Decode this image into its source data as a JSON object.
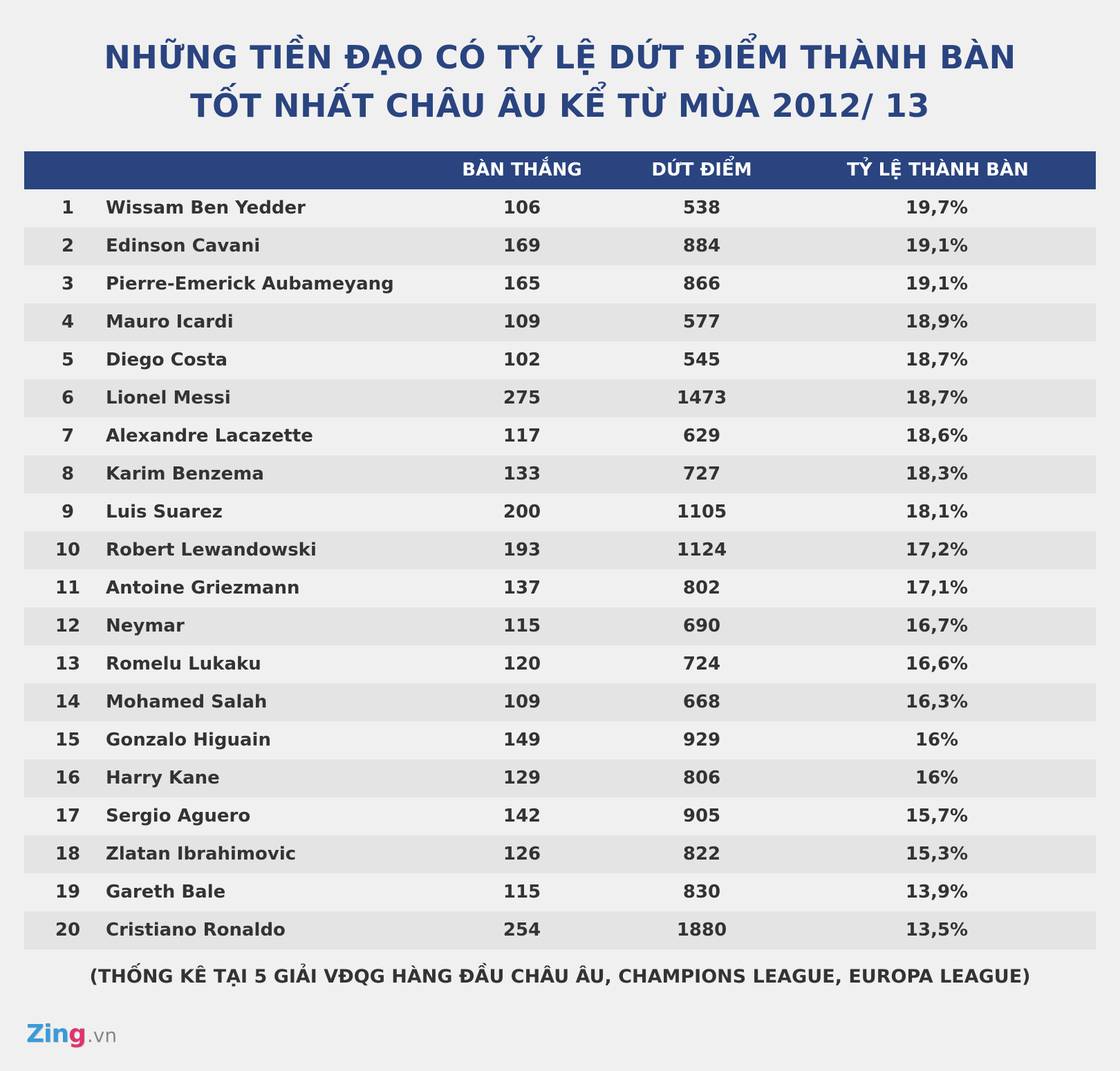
{
  "header": {
    "title_line1": "NHỮNG TIỀN ĐẠO CÓ TỶ LỆ DỨT ĐIỂM THÀNH BÀN",
    "title_line2": "TỐT NHẤT CHÂU ÂU KỂ TỪ MÙA 2012/ 13"
  },
  "columns": {
    "goals": "BÀN THẮNG",
    "shots": "DỨT ĐIỂM",
    "rate": "TỶ LỆ THÀNH BÀN"
  },
  "footnote": "(THỐNG KÊ TẠI 5 GIẢI VĐQG HÀNG ĐẦU CHÂU ÂU, CHAMPIONS LEAGUE, EUROPA LEAGUE)",
  "logo": {
    "brand_main": "Zin",
    "brand_accent": "g",
    "suffix": ".vn"
  },
  "colors": {
    "header_bg": "#2a4480",
    "title": "#2a4480",
    "row_alt": "#e4e4e4",
    "background": "#f0f0f0"
  },
  "chart_data": {
    "type": "table",
    "title": "NHỮNG TIỀN ĐẠO CÓ TỶ LỆ DỨT ĐIỂM THÀNH BÀN TỐT NHẤT CHÂU ÂU KỂ TỪ MÙA 2012/ 13",
    "headers": [
      "",
      "",
      "BÀN THẮNG",
      "DỨT ĐIỂM",
      "TỶ LỆ THÀNH BÀN"
    ],
    "rows": [
      {
        "rank": "1",
        "name": "Wissam Ben Yedder",
        "goals": "106",
        "shots": "538",
        "rate": "19,7%"
      },
      {
        "rank": "2",
        "name": "Edinson Cavani",
        "goals": "169",
        "shots": "884",
        "rate": "19,1%"
      },
      {
        "rank": "3",
        "name": "Pierre-Emerick Aubameyang",
        "goals": "165",
        "shots": "866",
        "rate": "19,1%"
      },
      {
        "rank": "4",
        "name": "Mauro Icardi",
        "goals": "109",
        "shots": "577",
        "rate": "18,9%"
      },
      {
        "rank": "5",
        "name": "Diego Costa",
        "goals": "102",
        "shots": "545",
        "rate": "18,7%"
      },
      {
        "rank": "6",
        "name": "Lionel Messi",
        "goals": "275",
        "shots": "1473",
        "rate": "18,7%"
      },
      {
        "rank": "7",
        "name": "Alexandre Lacazette",
        "goals": "117",
        "shots": "629",
        "rate": "18,6%"
      },
      {
        "rank": "8",
        "name": "Karim Benzema",
        "goals": "133",
        "shots": "727",
        "rate": "18,3%"
      },
      {
        "rank": "9",
        "name": "Luis Suarez",
        "goals": "200",
        "shots": "1105",
        "rate": "18,1%"
      },
      {
        "rank": "10",
        "name": "Robert Lewandowski",
        "goals": "193",
        "shots": "1124",
        "rate": "17,2%"
      },
      {
        "rank": "11",
        "name": "Antoine Griezmann",
        "goals": "137",
        "shots": "802",
        "rate": "17,1%"
      },
      {
        "rank": "12",
        "name": "Neymar",
        "goals": "115",
        "shots": "690",
        "rate": "16,7%"
      },
      {
        "rank": "13",
        "name": "Romelu Lukaku",
        "goals": "120",
        "shots": "724",
        "rate": "16,6%"
      },
      {
        "rank": "14",
        "name": "Mohamed Salah",
        "goals": "109",
        "shots": "668",
        "rate": "16,3%"
      },
      {
        "rank": "15",
        "name": "Gonzalo Higuain",
        "goals": "149",
        "shots": "929",
        "rate": "16%"
      },
      {
        "rank": "16",
        "name": "Harry Kane",
        "goals": "129",
        "shots": "806",
        "rate": "16%"
      },
      {
        "rank": "17",
        "name": "Sergio Aguero",
        "goals": "142",
        "shots": "905",
        "rate": "15,7%"
      },
      {
        "rank": "18",
        "name": "Zlatan Ibrahimovic",
        "goals": "126",
        "shots": "822",
        "rate": "15,3%"
      },
      {
        "rank": "19",
        "name": "Gareth Bale",
        "goals": "115",
        "shots": "830",
        "rate": "13,9%"
      },
      {
        "rank": "20",
        "name": "Cristiano Ronaldo",
        "goals": "254",
        "shots": "1880",
        "rate": "13,5%"
      }
    ]
  }
}
